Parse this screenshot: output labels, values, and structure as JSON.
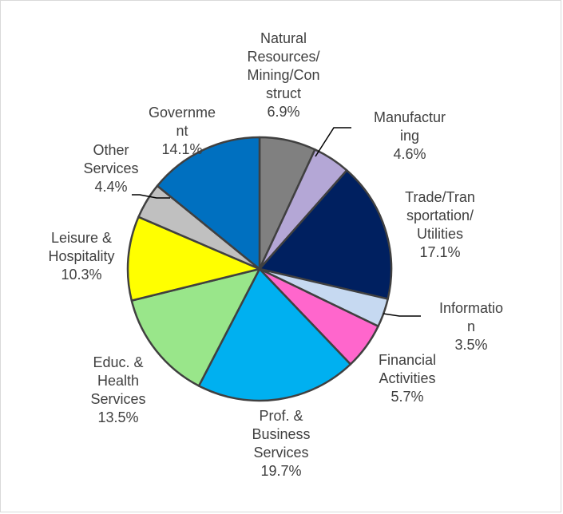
{
  "chart_data": {
    "type": "pie",
    "title": "",
    "slices": [
      {
        "label": "Natural Resources/ Mining/Con struct",
        "pct_label": "6.9%",
        "value": 6.9,
        "color": "#808080"
      },
      {
        "label": "Manufactur ing",
        "pct_label": "4.6%",
        "value": 4.6,
        "color": "#b4a7d6"
      },
      {
        "label": "Trade/Tran sportation/ Utilities",
        "pct_label": "17.1%",
        "value": 17.1,
        "color": "#002060"
      },
      {
        "label": "Informatio n",
        "pct_label": "3.5%",
        "value": 3.5,
        "color": "#c6d9f1"
      },
      {
        "label": "Financial Activities",
        "pct_label": "5.7%",
        "value": 5.7,
        "color": "#ff66cc"
      },
      {
        "label": "Prof. & Business Services",
        "pct_label": "19.7%",
        "value": 19.7,
        "color": "#00b0f0"
      },
      {
        "label": "Educ. & Health Services",
        "pct_label": "13.5%",
        "value": 13.5,
        "color": "#99e68a"
      },
      {
        "label": "Leisure & Hospitality",
        "pct_label": "10.3%",
        "value": 10.3,
        "color": "#ffff00"
      },
      {
        "label": "Other Services",
        "pct_label": "4.4%",
        "value": 4.4,
        "color": "#c0c0c0"
      },
      {
        "label": "Governme nt",
        "pct_label": "14.1%",
        "value": 14.1,
        "color": "#0070c0"
      }
    ]
  }
}
